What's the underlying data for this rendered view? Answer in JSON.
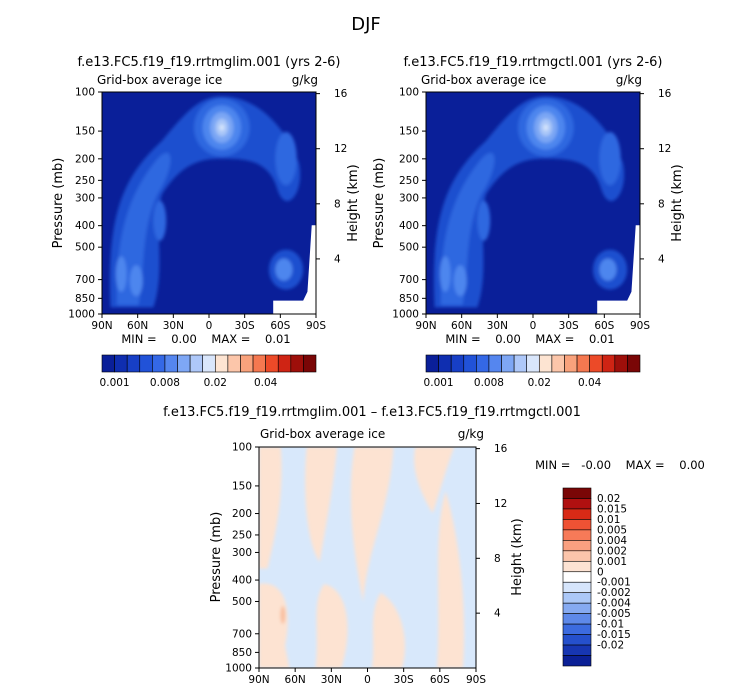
{
  "figure": {
    "season": "DJF",
    "diff_title": "f.e13.FC5.f19_f19.rrtmglim.001 – f.e13.FC5.f19_f19.rrtmgctl.001"
  },
  "colors": {
    "bg_dark": "#0a1f99",
    "ice_shades": [
      "#0a1f99",
      "#1234b0",
      "#1e50cf",
      "#2f68e0",
      "#4d86ee",
      "#7aa6f4",
      "#a9c6f8",
      "#d4e4fb"
    ],
    "diff_neg": "#d8e8fb",
    "diff_pos": "#fde3d2",
    "abs_bar": [
      "#0a1f99",
      "#0f2eb0",
      "#173fc6",
      "#2152d8",
      "#3468e6",
      "#5586ef",
      "#7ea7f5",
      "#aec8f9",
      "#d9e6fb",
      "#fde4d2",
      "#fcc6aa",
      "#f9a27c",
      "#f57850",
      "#ec4a28",
      "#cf2414",
      "#9e0f0a",
      "#7a0606"
    ],
    "diff_bar": [
      "#7a0606",
      "#b01010",
      "#d82a16",
      "#ef5234",
      "#f77a58",
      "#f9a080",
      "#fcc5ab",
      "#fde3d3",
      "#ffffff",
      "#d6e5fb",
      "#acc8f7",
      "#86aaf1",
      "#5e89e9",
      "#3c6bdf",
      "#2550cc",
      "#1736b2",
      "#0b2096"
    ]
  },
  "panels": [
    {
      "title": "f.e13.FC5.f19_f19.rrtmglim.001 (yrs 2-6)",
      "subtitle": "Grid-box average ice",
      "units": "g/kg",
      "ylabel": "Pressure (mb)",
      "rlabel": "Height (km)",
      "minmax": "MIN =    0.00    MAX =    0.01"
    },
    {
      "title": "f.e13.FC5.f19_f19.rrtmgctl.001 (yrs 2-6)",
      "subtitle": "Grid-box average ice",
      "units": "g/kg",
      "ylabel": "Pressure (mb)",
      "rlabel": "Height (km)",
      "minmax": "MIN =    0.00    MAX =    0.01"
    },
    {
      "subtitle": "Grid-box average ice",
      "units": "g/kg",
      "ylabel": "Pressure (mb)",
      "rlabel": "Height (km)",
      "minmax": "MIN =   -0.00    MAX =    0.00"
    }
  ],
  "chart_data": [
    {
      "type": "heatmap",
      "title": "f.e13.FC5.f19_f19.rrtmglim.001 (yrs 2-6)",
      "subtitle": "Grid-box average ice",
      "units": "g/kg",
      "xlabel": "",
      "ylabel": "Pressure (mb)",
      "y2label": "Height (km)",
      "x_ticks": [
        "90N",
        "60N",
        "30N",
        "0",
        "30S",
        "60S",
        "90S"
      ],
      "y_ticks": [
        100,
        150,
        200,
        250,
        300,
        400,
        500,
        700,
        850,
        1000
      ],
      "y2_ticks": [
        16,
        12,
        8,
        4
      ],
      "ylim": [
        1000,
        100
      ],
      "y_scale": "log",
      "min": 0.0,
      "max": 0.01,
      "colorbar_labels": [
        "0.001",
        "0.008",
        "0.02",
        "0.04"
      ]
    },
    {
      "type": "heatmap",
      "title": "f.e13.FC5.f19_f19.rrtmgctl.001 (yrs 2-6)",
      "subtitle": "Grid-box average ice",
      "units": "g/kg",
      "xlabel": "",
      "ylabel": "Pressure (mb)",
      "y2label": "Height (km)",
      "x_ticks": [
        "90N",
        "60N",
        "30N",
        "0",
        "30S",
        "60S",
        "90S"
      ],
      "y_ticks": [
        100,
        150,
        200,
        250,
        300,
        400,
        500,
        700,
        850,
        1000
      ],
      "y2_ticks": [
        16,
        12,
        8,
        4
      ],
      "ylim": [
        1000,
        100
      ],
      "y_scale": "log",
      "min": 0.0,
      "max": 0.01,
      "colorbar_labels": [
        "0.001",
        "0.008",
        "0.02",
        "0.04"
      ]
    },
    {
      "type": "heatmap",
      "title": "f.e13.FC5.f19_f19.rrtmglim.001 – f.e13.FC5.f19_f19.rrtmgctl.001",
      "subtitle": "Grid-box average ice",
      "units": "g/kg",
      "xlabel": "",
      "ylabel": "Pressure (mb)",
      "y2label": "Height (km)",
      "x_ticks": [
        "90N",
        "60N",
        "30N",
        "0",
        "30S",
        "60S",
        "90S"
      ],
      "y_ticks": [
        100,
        150,
        200,
        250,
        300,
        400,
        500,
        700,
        850,
        1000
      ],
      "y2_ticks": [
        16,
        12,
        8,
        4
      ],
      "ylim": [
        1000,
        100
      ],
      "y_scale": "log",
      "min": -0.0,
      "max": 0.0,
      "colorbar_labels": [
        "0.02",
        "0.015",
        "0.01",
        "0.005",
        "0.004",
        "0.002",
        "0.001",
        "0",
        "-0.001",
        "-0.002",
        "-0.004",
        "-0.005",
        "-0.01",
        "-0.015",
        "-0.02"
      ]
    }
  ]
}
